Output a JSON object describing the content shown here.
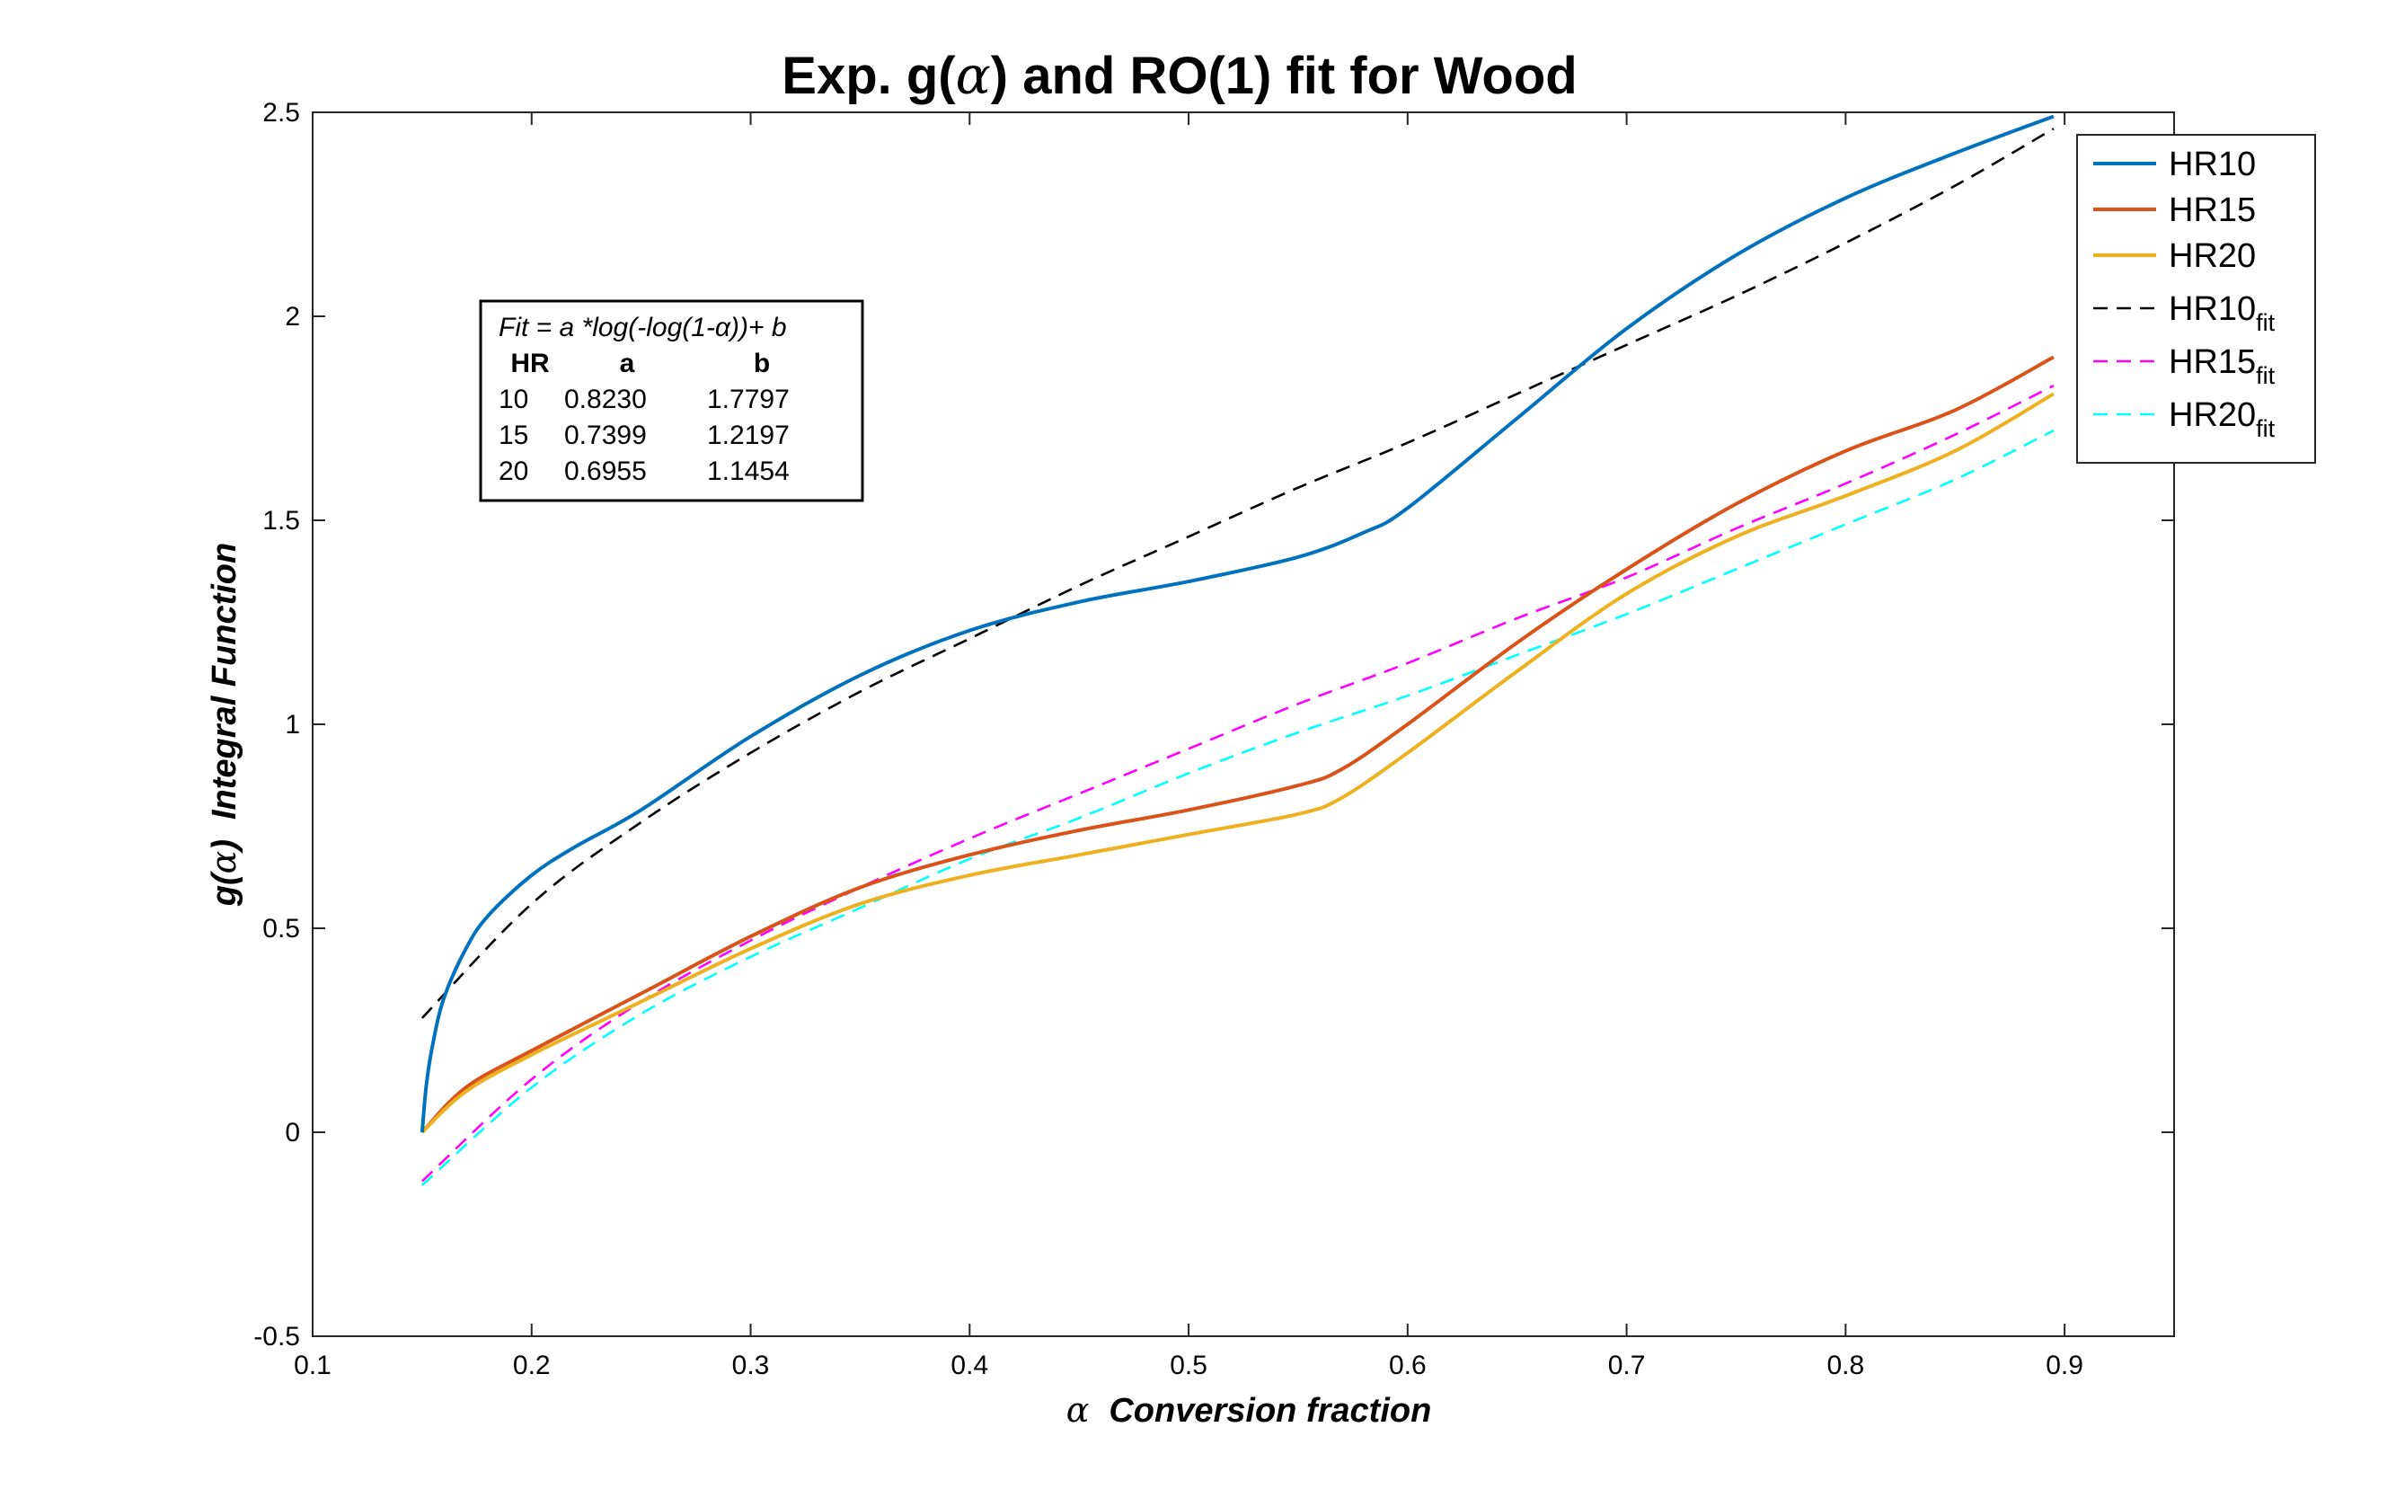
{
  "chart_data": {
    "type": "line",
    "title": {
      "pre": "Exp. g(",
      "alpha": "α",
      "post": ") and RO(1) fit for Wood"
    },
    "xlabel": {
      "alpha": "α",
      "text": "Conversion fraction"
    },
    "ylabel": {
      "pre": "g(",
      "alpha": "α",
      "post": ")",
      "text": "Integral Function"
    },
    "xlim": [
      0.1,
      0.95
    ],
    "ylim": [
      -0.5,
      2.5
    ],
    "xticks": [
      0.1,
      0.2,
      0.3,
      0.4,
      0.5,
      0.6,
      0.7,
      0.8,
      0.9
    ],
    "xtick_labels": [
      "0.1",
      "0.2",
      "0.3",
      "0.4",
      "0.5",
      "0.6",
      "0.7",
      "0.8",
      "0.9"
    ],
    "yticks": [
      -0.5,
      0,
      0.5,
      1,
      1.5,
      2,
      2.5
    ],
    "ytick_labels": [
      "-0.5",
      "0",
      "0.5",
      "1",
      "1.5",
      "2",
      "2.5"
    ],
    "grid": false,
    "legend_position": "top-right",
    "series": [
      {
        "name": "HR10",
        "color": "#0072BD",
        "dash": "solid",
        "x": [
          0.15,
          0.152,
          0.155,
          0.16,
          0.17,
          0.18,
          0.2,
          0.22,
          0.25,
          0.3,
          0.35,
          0.4,
          0.45,
          0.5,
          0.55,
          0.58,
          0.6,
          0.65,
          0.7,
          0.75,
          0.8,
          0.85,
          0.895
        ],
        "y": [
          0.0,
          0.12,
          0.22,
          0.33,
          0.45,
          0.53,
          0.63,
          0.7,
          0.79,
          0.97,
          1.12,
          1.23,
          1.3,
          1.35,
          1.41,
          1.47,
          1.53,
          1.75,
          1.97,
          2.15,
          2.29,
          2.4,
          2.49
        ]
      },
      {
        "name": "HR15",
        "color": "#D95319",
        "dash": "solid",
        "x": [
          0.15,
          0.17,
          0.2,
          0.25,
          0.3,
          0.35,
          0.4,
          0.45,
          0.5,
          0.55,
          0.57,
          0.6,
          0.65,
          0.7,
          0.75,
          0.8,
          0.85,
          0.895
        ],
        "y": [
          0.0,
          0.11,
          0.2,
          0.34,
          0.48,
          0.6,
          0.68,
          0.74,
          0.79,
          0.85,
          0.89,
          1.0,
          1.2,
          1.38,
          1.54,
          1.67,
          1.77,
          1.9
        ]
      },
      {
        "name": "HR20",
        "color": "#EDB120",
        "dash": "solid",
        "x": [
          0.15,
          0.17,
          0.2,
          0.25,
          0.3,
          0.35,
          0.4,
          0.45,
          0.5,
          0.55,
          0.57,
          0.6,
          0.65,
          0.7,
          0.75,
          0.8,
          0.85,
          0.895
        ],
        "y": [
          0.0,
          0.1,
          0.19,
          0.32,
          0.45,
          0.56,
          0.63,
          0.68,
          0.73,
          0.78,
          0.82,
          0.93,
          1.13,
          1.32,
          1.46,
          1.56,
          1.67,
          1.81
        ]
      },
      {
        "name": "HR10",
        "name_sub": "fit",
        "color": "#000000",
        "dash": "dashed",
        "fit": {
          "a": 0.823,
          "b": 1.7797
        },
        "x": [
          0.15,
          0.2,
          0.25,
          0.3,
          0.35,
          0.4,
          0.45,
          0.5,
          0.55,
          0.6,
          0.65,
          0.7,
          0.75,
          0.8,
          0.85,
          0.895
        ],
        "y": [
          0.28,
          0.56,
          0.76,
          0.93,
          1.08,
          1.21,
          1.34,
          1.46,
          1.58,
          1.69,
          1.81,
          1.93,
          2.05,
          2.18,
          2.32,
          2.46
        ]
      },
      {
        "name": "HR15",
        "name_sub": "fit",
        "color": "#FF00FF",
        "dash": "dashed",
        "fit": {
          "a": 0.7399,
          "b": 1.2197
        },
        "x": [
          0.15,
          0.2,
          0.25,
          0.3,
          0.35,
          0.4,
          0.45,
          0.5,
          0.55,
          0.6,
          0.65,
          0.7,
          0.75,
          0.8,
          0.85,
          0.895
        ],
        "y": [
          -0.12,
          0.13,
          0.32,
          0.47,
          0.6,
          0.72,
          0.83,
          0.94,
          1.05,
          1.15,
          1.26,
          1.36,
          1.48,
          1.59,
          1.71,
          1.83
        ]
      },
      {
        "name": "HR20",
        "name_sub": "fit",
        "color": "#00FFFF",
        "dash": "dashed",
        "fit": {
          "a": 0.6955,
          "b": 1.1454
        },
        "x": [
          0.15,
          0.2,
          0.25,
          0.3,
          0.35,
          0.4,
          0.45,
          0.5,
          0.55,
          0.6,
          0.65,
          0.7,
          0.75,
          0.8,
          0.85,
          0.895
        ],
        "y": [
          -0.13,
          0.11,
          0.29,
          0.43,
          0.55,
          0.67,
          0.77,
          0.88,
          0.98,
          1.07,
          1.17,
          1.27,
          1.38,
          1.49,
          1.6,
          1.72
        ]
      }
    ],
    "annotation": {
      "formula": "Fit = a *log(-log(1-α))+ b",
      "headers": [
        "HR",
        "a",
        "b"
      ],
      "rows": [
        [
          "10",
          "0.8230",
          "1.7797"
        ],
        [
          "15",
          "0.7399",
          "1.2197"
        ],
        [
          "20",
          "0.6955",
          "1.1454"
        ]
      ]
    }
  }
}
